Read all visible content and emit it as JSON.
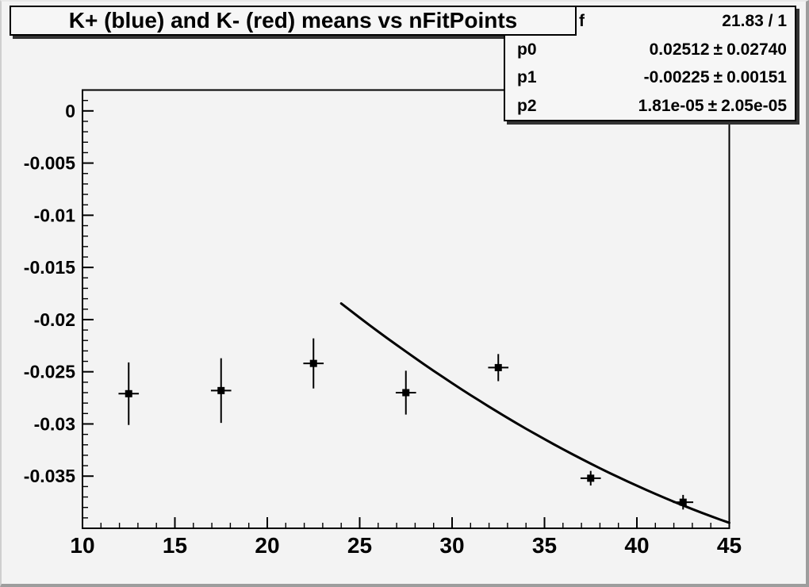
{
  "title": {
    "text": "K+ (blue) and K- (red) means vs nFitPoints"
  },
  "stats": {
    "function_name": "f",
    "chi2_ndf": "21.83 / 1",
    "pm": "±",
    "params": [
      {
        "name": "p0",
        "value": "0.02512",
        "error": "0.02740"
      },
      {
        "name": "p1",
        "value": "-0.00225",
        "error": "0.00151"
      },
      {
        "name": "p2",
        "value": "1.81e-05",
        "error": "2.05e-05"
      }
    ]
  },
  "colors": {
    "canvas_bg": "#f3f3f3",
    "box_bg": "#f6f6f6",
    "axis": "#000000",
    "marker": "#000000",
    "curve": "#000000",
    "shadow": "#323232",
    "bevel_dark": "#9d9d9d"
  },
  "chart_data": {
    "type": "scatter",
    "title": "K+ (blue) and K- (red) means vs nFitPoints",
    "xlabel": "",
    "ylabel": "",
    "xlim": [
      10,
      45
    ],
    "ylim": [
      -0.04,
      0.002
    ],
    "grid": false,
    "legend": null,
    "x_ticks": [
      {
        "v": 10,
        "label": "10"
      },
      {
        "v": 15,
        "label": "15"
      },
      {
        "v": 20,
        "label": "20"
      },
      {
        "v": 25,
        "label": "25"
      },
      {
        "v": 30,
        "label": "30"
      },
      {
        "v": 35,
        "label": "35"
      },
      {
        "v": 40,
        "label": "40"
      },
      {
        "v": 45,
        "label": "45"
      }
    ],
    "x_minor_step": 1,
    "y_ticks": [
      {
        "v": 0,
        "label": "0"
      },
      {
        "v": -0.005,
        "label": "-0.005"
      },
      {
        "v": -0.01,
        "label": "-0.01"
      },
      {
        "v": -0.015,
        "label": "-0.015"
      },
      {
        "v": -0.02,
        "label": "-0.02"
      },
      {
        "v": -0.025,
        "label": "-0.025"
      },
      {
        "v": -0.03,
        "label": "-0.03"
      },
      {
        "v": -0.035,
        "label": "-0.035"
      }
    ],
    "y_minor_step": 0.001,
    "series": [
      {
        "name": "K means vs nFitPoints",
        "marker": "filled-square",
        "color": "#000000",
        "ex": 0.55,
        "points": [
          {
            "x": 12.5,
            "y": -0.0271,
            "ey": 0.003
          },
          {
            "x": 17.5,
            "y": -0.0268,
            "ey": 0.0031
          },
          {
            "x": 22.5,
            "y": -0.0242,
            "ey": 0.0024
          },
          {
            "x": 27.5,
            "y": -0.027,
            "ey": 0.0021
          },
          {
            "x": 32.5,
            "y": -0.0246,
            "ey": 0.0013
          },
          {
            "x": 37.5,
            "y": -0.0352,
            "ey": 0.0007
          },
          {
            "x": 42.5,
            "y": -0.0375,
            "ey": 0.0007
          }
        ]
      }
    ],
    "fit_curve": {
      "type": "quadratic p0+p1*x+p2*x^2",
      "p0": 0.02512,
      "p1": -0.00225,
      "p2": 1.81e-05,
      "x_range": [
        24,
        45
      ],
      "color": "#000000"
    }
  }
}
